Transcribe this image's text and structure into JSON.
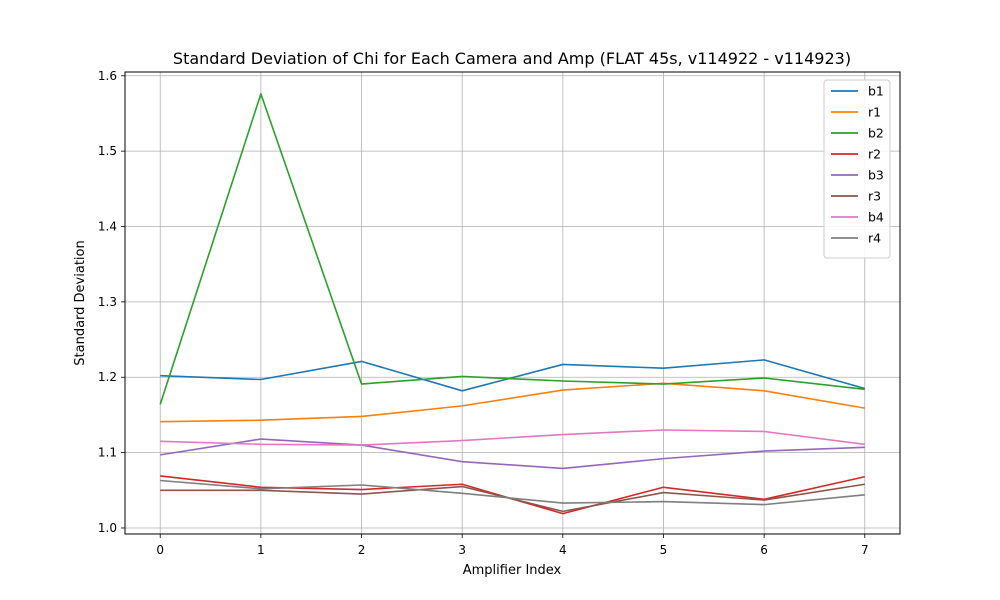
{
  "chart_data": {
    "type": "line",
    "title": "Standard Deviation of Chi for Each Camera and Amp (FLAT 45s, v114922 - v114923)",
    "xlabel": "Amplifier Index",
    "ylabel": "Standard Deviation",
    "x": [
      0,
      1,
      2,
      3,
      4,
      5,
      6,
      7
    ],
    "x_tick_labels": [
      "0",
      "1",
      "2",
      "3",
      "4",
      "5",
      "6",
      "7"
    ],
    "y_tick_labels": [
      "1.0",
      "1.1",
      "1.2",
      "1.3",
      "1.4",
      "1.5",
      "1.6"
    ],
    "xlim": [
      -0.35,
      7.35
    ],
    "ylim": [
      0.992,
      1.605
    ],
    "grid": true,
    "legend_position": "top-right",
    "series": [
      {
        "name": "b1",
        "color": "#1f77b4",
        "values": [
          1.202,
          1.197,
          1.221,
          1.182,
          1.217,
          1.212,
          1.223,
          1.185
        ]
      },
      {
        "name": "r1",
        "color": "#ff7f0e",
        "values": [
          1.141,
          1.143,
          1.148,
          1.162,
          1.183,
          1.192,
          1.182,
          1.159
        ]
      },
      {
        "name": "b2",
        "color": "#2ca02c",
        "values": [
          1.164,
          1.576,
          1.191,
          1.201,
          1.195,
          1.191,
          1.199,
          1.184
        ]
      },
      {
        "name": "r2",
        "color": "#d62728",
        "values": [
          1.069,
          1.054,
          1.051,
          1.058,
          1.019,
          1.054,
          1.038,
          1.068
        ]
      },
      {
        "name": "b3",
        "color": "#9467bd",
        "values": [
          1.097,
          1.118,
          1.11,
          1.088,
          1.079,
          1.092,
          1.102,
          1.107
        ]
      },
      {
        "name": "r3",
        "color": "#8c564b",
        "values": [
          1.05,
          1.05,
          1.045,
          1.055,
          1.022,
          1.047,
          1.037,
          1.058
        ]
      },
      {
        "name": "b4",
        "color": "#e377c2",
        "values": [
          1.115,
          1.111,
          1.11,
          1.116,
          1.124,
          1.13,
          1.128,
          1.111
        ]
      },
      {
        "name": "r4",
        "color": "#7f7f7f",
        "values": [
          1.063,
          1.052,
          1.057,
          1.046,
          1.033,
          1.035,
          1.031,
          1.044
        ]
      }
    ]
  }
}
